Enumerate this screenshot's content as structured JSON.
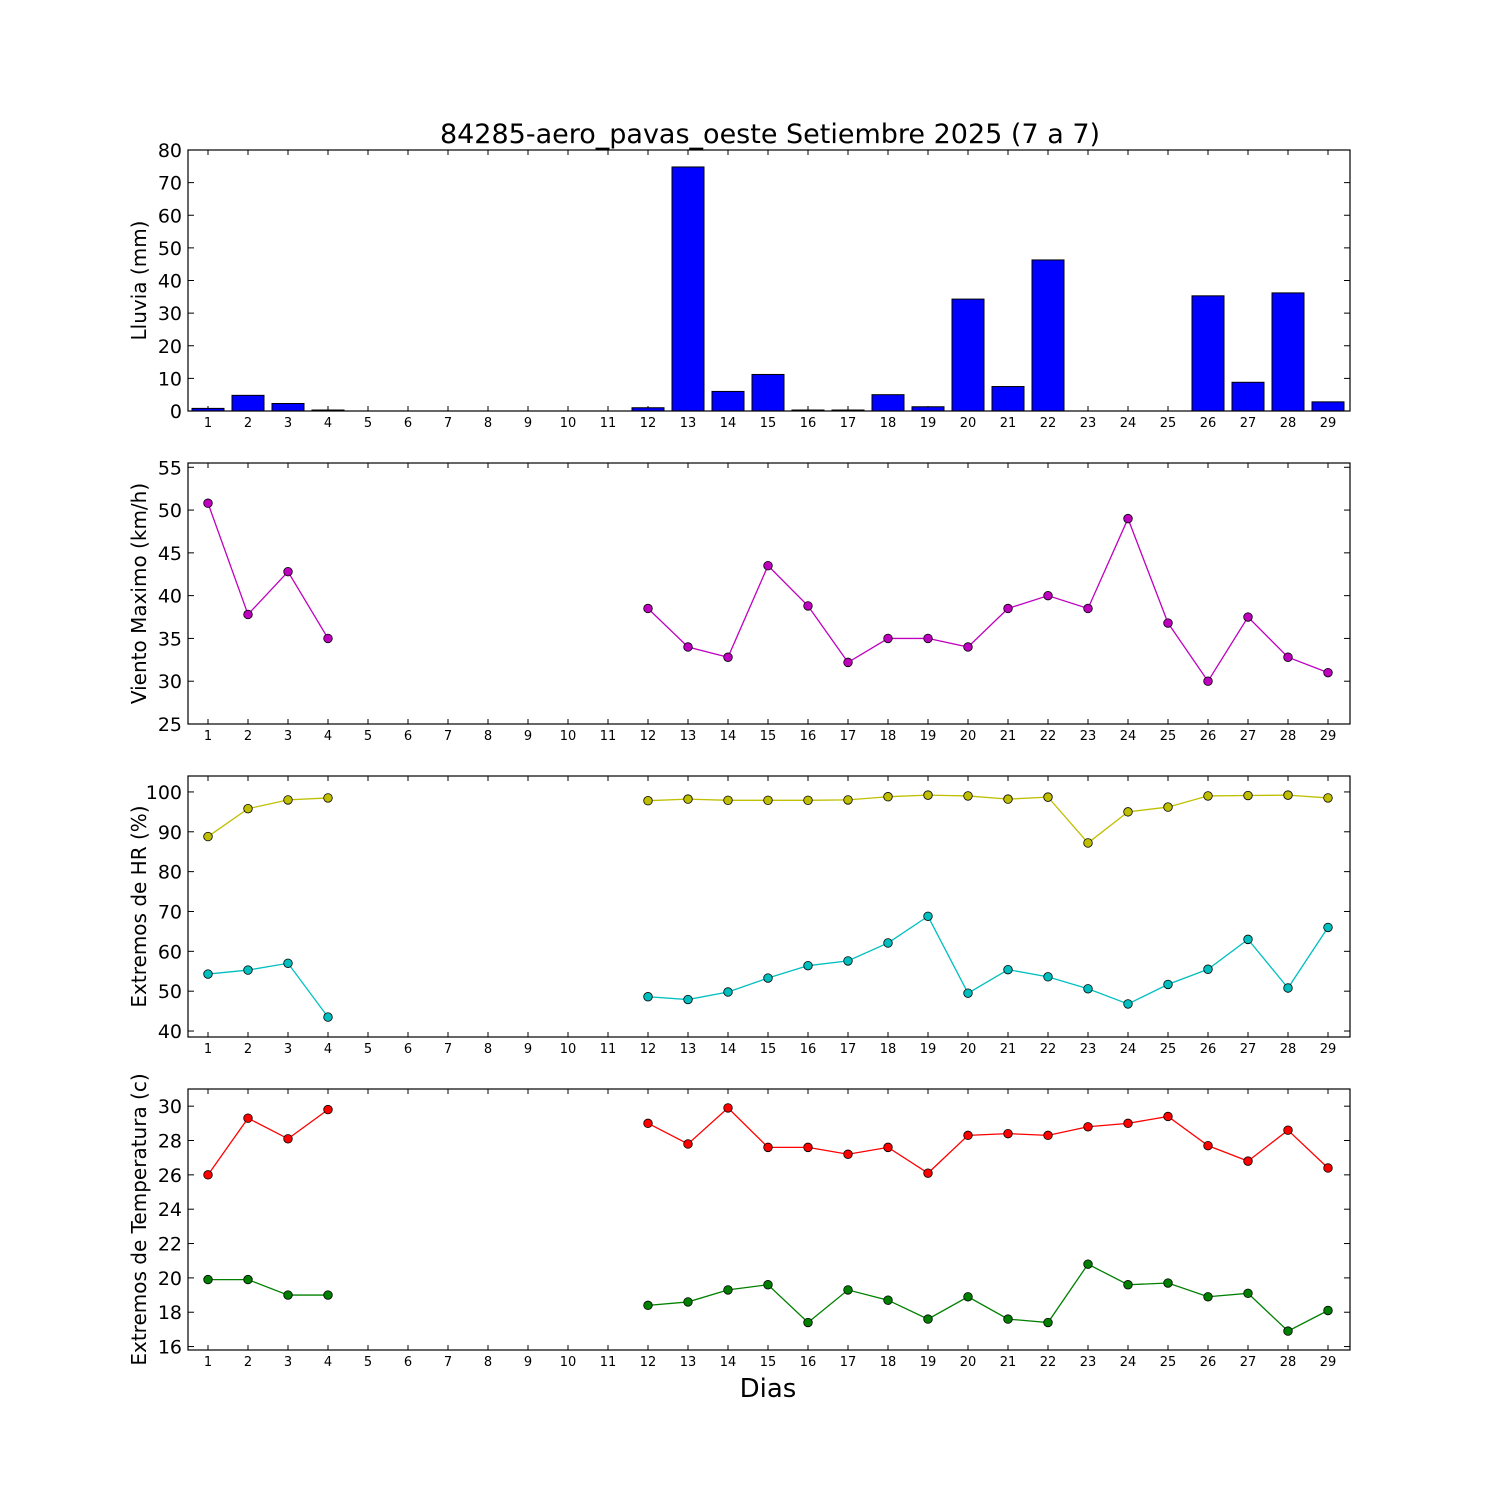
{
  "chart_data": [
    {
      "type": "bar",
      "title": "84285-aero_pavas_oeste Setiembre 2025  (7 a 7)",
      "ylabel": "Lluvia (mm)",
      "xlabel": "",
      "ylim": [
        0,
        80
      ],
      "yticks": [
        0,
        10,
        20,
        30,
        40,
        50,
        60,
        70,
        80
      ],
      "categories": [
        1,
        2,
        3,
        4,
        5,
        6,
        7,
        8,
        9,
        10,
        11,
        12,
        13,
        14,
        15,
        16,
        17,
        18,
        19,
        20,
        21,
        22,
        23,
        24,
        25,
        26,
        27,
        28,
        29
      ],
      "values": [
        0.8,
        4.8,
        2.3,
        0.3,
        null,
        null,
        null,
        null,
        null,
        null,
        null,
        1.0,
        74.8,
        6.0,
        11.2,
        0.3,
        0.3,
        5.0,
        1.3,
        34.3,
        7.5,
        46.3,
        0,
        0,
        0,
        35.3,
        8.8,
        36.2,
        2.8
      ],
      "color": "#0000ff",
      "grid": false
    },
    {
      "type": "line",
      "title": "",
      "ylabel": "Viento Maximo (km/h)",
      "xlabel": "",
      "ylim": [
        25,
        55.5
      ],
      "yticks": [
        25,
        30,
        35,
        40,
        45,
        50,
        55
      ],
      "categories": [
        1,
        2,
        3,
        4,
        5,
        6,
        7,
        8,
        9,
        10,
        11,
        12,
        13,
        14,
        15,
        16,
        17,
        18,
        19,
        20,
        21,
        22,
        23,
        24,
        25,
        26,
        27,
        28,
        29
      ],
      "series": [
        {
          "values": [
            50.8,
            37.8,
            42.8,
            35.0,
            null,
            null,
            null,
            null,
            null,
            null,
            null,
            38.5,
            34.0,
            32.8,
            43.5,
            38.8,
            32.2,
            35.0,
            35.0,
            34.0,
            38.5,
            40.0,
            38.5,
            49.0,
            36.8,
            30.0,
            37.5,
            32.8,
            31.0
          ],
          "color": "#bf00bf"
        }
      ],
      "grid": false
    },
    {
      "type": "line",
      "title": "",
      "ylabel": "Extremos de HR (%)",
      "xlabel": "",
      "ylim": [
        38.5,
        104
      ],
      "yticks": [
        40,
        50,
        60,
        70,
        80,
        90,
        100
      ],
      "categories": [
        1,
        2,
        3,
        4,
        5,
        6,
        7,
        8,
        9,
        10,
        11,
        12,
        13,
        14,
        15,
        16,
        17,
        18,
        19,
        20,
        21,
        22,
        23,
        24,
        25,
        26,
        27,
        28,
        29
      ],
      "series": [
        {
          "values": [
            88.8,
            95.8,
            98.0,
            98.5,
            null,
            null,
            null,
            null,
            null,
            null,
            null,
            97.8,
            98.2,
            97.9,
            97.9,
            97.9,
            98.0,
            98.8,
            99.2,
            99.0,
            98.2,
            98.7,
            87.2,
            95.0,
            96.2,
            99.0,
            99.1,
            99.2,
            98.5
          ],
          "color": "#bfbf00"
        },
        {
          "values": [
            54.3,
            55.3,
            57.0,
            43.5,
            null,
            null,
            null,
            null,
            null,
            null,
            null,
            48.6,
            47.9,
            49.8,
            53.3,
            56.4,
            57.6,
            62.1,
            68.8,
            49.5,
            55.4,
            53.6,
            50.6,
            46.8,
            51.7,
            55.5,
            63.0,
            50.8,
            66.0
          ],
          "color": "#00bfbf"
        }
      ],
      "grid": false
    },
    {
      "type": "line",
      "title": "",
      "ylabel": "Extremos de Temperatura (c)",
      "xlabel": "Dias",
      "ylim": [
        15.8,
        31
      ],
      "yticks": [
        16,
        18,
        20,
        22,
        24,
        26,
        28,
        30
      ],
      "categories": [
        1,
        2,
        3,
        4,
        5,
        6,
        7,
        8,
        9,
        10,
        11,
        12,
        13,
        14,
        15,
        16,
        17,
        18,
        19,
        20,
        21,
        22,
        23,
        24,
        25,
        26,
        27,
        28,
        29
      ],
      "series": [
        {
          "values": [
            26.0,
            29.3,
            28.1,
            29.8,
            null,
            null,
            null,
            null,
            null,
            null,
            null,
            29.0,
            27.8,
            29.9,
            27.6,
            27.6,
            27.2,
            27.6,
            26.1,
            28.3,
            28.4,
            28.3,
            28.8,
            29.0,
            29.4,
            27.7,
            26.8,
            28.6,
            26.4
          ],
          "color": "#ff0000"
        },
        {
          "values": [
            19.9,
            19.9,
            19.0,
            19.0,
            null,
            null,
            null,
            null,
            null,
            null,
            null,
            18.4,
            18.6,
            19.3,
            19.6,
            17.4,
            19.3,
            18.7,
            17.6,
            18.9,
            17.6,
            17.4,
            20.8,
            19.6,
            19.7,
            18.9,
            19.1,
            16.9,
            18.1
          ],
          "color": "#008000"
        }
      ],
      "grid": false
    }
  ]
}
